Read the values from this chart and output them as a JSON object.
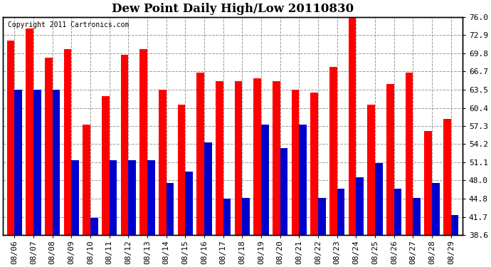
{
  "title": "Dew Point Daily High/Low 20110830",
  "copyright_text": "Copyright 2011 Cartronics.com",
  "dates": [
    "08/06",
    "08/07",
    "08/08",
    "08/09",
    "08/10",
    "08/11",
    "08/12",
    "08/13",
    "08/14",
    "08/15",
    "08/16",
    "08/17",
    "08/18",
    "08/19",
    "08/20",
    "08/21",
    "08/22",
    "08/23",
    "08/24",
    "08/25",
    "08/26",
    "08/27",
    "08/28",
    "08/29"
  ],
  "highs": [
    72.0,
    74.0,
    69.0,
    70.5,
    57.5,
    62.5,
    69.5,
    70.5,
    63.5,
    61.0,
    66.5,
    65.0,
    65.0,
    65.5,
    65.0,
    63.5,
    63.0,
    67.5,
    76.5,
    61.0,
    64.5,
    66.5,
    56.5,
    58.5
  ],
  "lows": [
    63.5,
    63.5,
    63.5,
    51.5,
    41.5,
    51.5,
    51.5,
    51.5,
    47.5,
    49.5,
    54.5,
    44.8,
    45.0,
    57.5,
    53.5,
    57.5,
    45.0,
    46.5,
    48.5,
    51.0,
    46.5,
    45.0,
    47.5,
    42.0
  ],
  "high_color": "#ff0000",
  "low_color": "#0000cc",
  "ylim_min": 38.6,
  "ylim_max": 76.0,
  "yticks": [
    38.6,
    41.7,
    44.8,
    48.0,
    51.1,
    54.2,
    57.3,
    60.4,
    63.5,
    66.7,
    69.8,
    72.9,
    76.0
  ],
  "background_color": "#ffffff",
  "plot_bg_color": "#ffffff",
  "grid_color": "#999999",
  "title_fontsize": 12,
  "tick_fontsize": 8,
  "bar_width": 0.4
}
